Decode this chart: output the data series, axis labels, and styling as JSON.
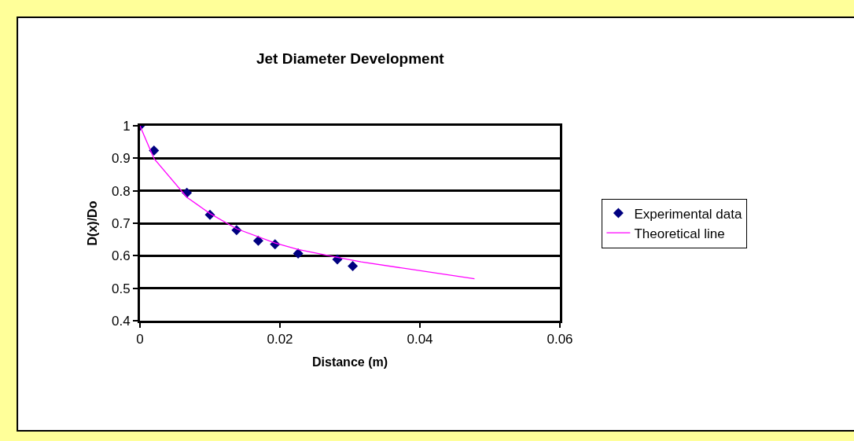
{
  "chart_data": {
    "type": "scatter",
    "title": "Jet Diameter Development",
    "xlabel": "Distance (m)",
    "ylabel": "D(x)/Do",
    "xlim": [
      0,
      0.06
    ],
    "xticks": [
      0,
      0.02,
      0.04,
      0.06
    ],
    "ylim": [
      0.4,
      1
    ],
    "yticks": [
      0.4,
      0.5,
      0.6,
      0.7,
      0.8,
      0.9,
      1
    ],
    "grid": "y",
    "legend": "right",
    "series": [
      {
        "name": "Experimental data",
        "marker": "diamond",
        "color": "#000080",
        "x": [
          0,
          0.002,
          0.0067,
          0.01,
          0.0138,
          0.0169,
          0.0193,
          0.0226,
          0.0282,
          0.0304
        ],
        "values": [
          1,
          0.924,
          0.794,
          0.726,
          0.679,
          0.646,
          0.635,
          0.607,
          0.589,
          0.568
        ]
      },
      {
        "name": "Theoretical line",
        "type": "line",
        "marker": "none",
        "line_style": "solid",
        "color": "#ff00ff",
        "x": [
          0,
          0.002,
          0.0067,
          0.01,
          0.0138,
          0.0193,
          0.0226,
          0.0282,
          0.0316,
          0.0478
        ],
        "values": [
          1,
          0.899,
          0.78,
          0.73,
          0.683,
          0.639,
          0.619,
          0.595,
          0.581,
          0.529
        ]
      }
    ]
  }
}
